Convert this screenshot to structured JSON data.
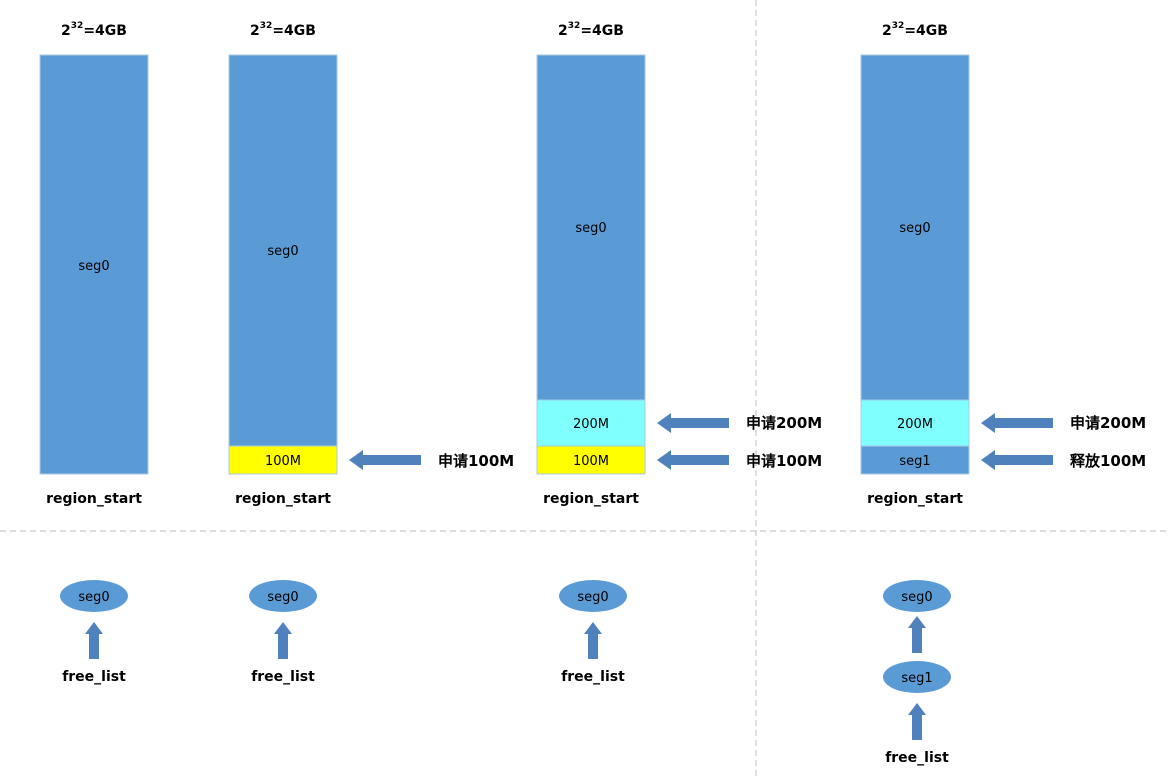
{
  "colors": {
    "bar_blue": "#5b9bd5",
    "bar_edge": "#a9c8e6",
    "yellow": "#ffff00",
    "cyan": "#80ffff",
    "arrow_blue": "#4f81bd",
    "divider": "#bfbfbf"
  },
  "capacity": {
    "base": "2",
    "exp": "32",
    "rest": "=4GB"
  },
  "region_label": "region_start",
  "free_list_label": "free_list",
  "columns": [
    {
      "top_segment": "seg0",
      "blocks": [],
      "free_nodes": [
        "seg0"
      ]
    },
    {
      "top_segment": "seg0",
      "blocks": [
        {
          "label": "100M",
          "color": "yellow",
          "annotation": "申请100M"
        }
      ],
      "free_nodes": [
        "seg0"
      ]
    },
    {
      "top_segment": "seg0",
      "blocks": [
        {
          "label": "100M",
          "color": "yellow",
          "annotation": "申请100M"
        },
        {
          "label": "200M",
          "color": "cyan",
          "annotation": "申请200M"
        }
      ],
      "free_nodes": [
        "seg0"
      ]
    },
    {
      "top_segment": "seg0",
      "blocks": [
        {
          "label": "seg1",
          "color": "bar_blue",
          "annotation": "释放100M"
        },
        {
          "label": "200M",
          "color": "cyan",
          "annotation": "申请200M"
        }
      ],
      "free_nodes": [
        "seg0",
        "seg1"
      ]
    }
  ]
}
